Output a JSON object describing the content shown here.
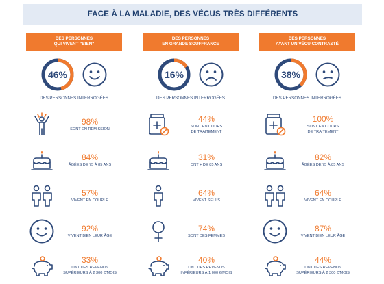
{
  "title": "FACE À LA MALADIE, DES VÉCUS TRÈS DIFFÉRENTS",
  "colors": {
    "accent": "#f07a2e",
    "navy": "#2f4a7a",
    "ring_track": "#2f4a7a",
    "title_bg": "#e3eaf4"
  },
  "groups": [
    {
      "banner_line1": "DES PERSONNES",
      "banner_line2": "QUI VIVENT \"BIEN\"",
      "percent": 46,
      "percent_label": "46%",
      "face": "happy-face-icon",
      "caption": "DES PERSONNES INTERROGÉES",
      "stats": [
        {
          "icon": "person-celebrating-icon",
          "value": "98%",
          "label_line1": "SONT EN RÉMISSION",
          "label_line2": ""
        },
        {
          "icon": "birthday-cake-icon",
          "value": "84%",
          "label_line1": "ÂGÉES DE 75 À 85 ANS",
          "label_line2": ""
        },
        {
          "icon": "couple-icon",
          "value": "57%",
          "label_line1": "VIVENT EN COUPLE",
          "label_line2": ""
        },
        {
          "icon": "smiley-icon",
          "value": "92%",
          "label_line1": "VIVENT BIEN LEUR ÂGE",
          "label_line2": ""
        },
        {
          "icon": "piggy-bank-icon",
          "value": "33%",
          "label_line1": "ONT DES REVENUS",
          "label_line2": "SUPÉRIEURS À 2 300 €/MOIS"
        }
      ]
    },
    {
      "banner_line1": "DES PERSONNES",
      "banner_line2": "EN GRANDE SOUFFRANCE",
      "percent": 16,
      "percent_label": "16%",
      "face": "sad-face-icon",
      "caption": "DES PERSONNES INTERROGÉES",
      "stats": [
        {
          "icon": "medicine-bottle-icon",
          "value": "44%",
          "label_line1": "SONT EN COURS",
          "label_line2": "DE TRAITEMENT"
        },
        {
          "icon": "birthday-cake-icon",
          "value": "31%",
          "label_line1": "ONT + DE 85 ANS",
          "label_line2": ""
        },
        {
          "icon": "single-person-icon",
          "value": "64%",
          "label_line1": "VIVENT SEULS",
          "label_line2": ""
        },
        {
          "icon": "female-symbol-icon",
          "value": "74%",
          "label_line1": "SONT DES FEMMES",
          "label_line2": ""
        },
        {
          "icon": "piggy-bank-icon",
          "value": "40%",
          "label_line1": "ONT DES REVENUS",
          "label_line2": "INFÉRIEURS À 1 000 €/MOIS"
        }
      ]
    },
    {
      "banner_line1": "DES PERSONNES",
      "banner_line2": "AYANT UN VÉCU CONTRASTÉ",
      "percent": 38,
      "percent_label": "38%",
      "face": "neutral-face-icon",
      "caption": "DES PERSONNES INTERROGÉES",
      "stats": [
        {
          "icon": "medicine-bottle-icon",
          "value": "100%",
          "label_line1": "SONT EN COURS",
          "label_line2": "DE TRAITEMENT"
        },
        {
          "icon": "birthday-cake-icon",
          "value": "82%",
          "label_line1": "ÂGÉES DE 75 À 85 ANS",
          "label_line2": ""
        },
        {
          "icon": "couple-icon",
          "value": "64%",
          "label_line1": "VIVENT EN COUPLE",
          "label_line2": ""
        },
        {
          "icon": "smiley-icon",
          "value": "87%",
          "label_line1": "VIVENT BIEN LEUR ÂGE",
          "label_line2": ""
        },
        {
          "icon": "piggy-bank-icon",
          "value": "44%",
          "label_line1": "ONT DES REVENUS",
          "label_line2": "SUPÉRIEURS À 2 300 €/MOIS"
        }
      ]
    }
  ]
}
